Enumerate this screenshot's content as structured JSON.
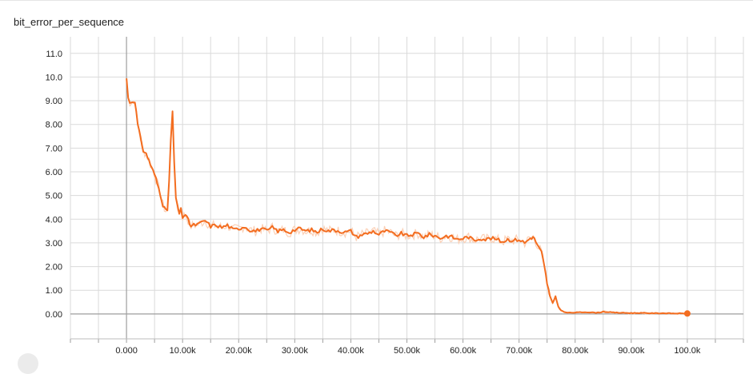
{
  "chart_data": {
    "type": "line",
    "title": "bit_error_per_sequence",
    "xlabel": "",
    "ylabel": "",
    "xlim": [
      -10000,
      110000
    ],
    "ylim": [
      -1.05,
      11.7
    ],
    "grid": true,
    "x_ticks": [
      0,
      10000,
      20000,
      30000,
      40000,
      50000,
      60000,
      70000,
      80000,
      90000,
      100000
    ],
    "x_tick_labels": [
      "0.000",
      "10.00k",
      "20.00k",
      "30.00k",
      "40.00k",
      "50.00k",
      "60.00k",
      "70.00k",
      "80.00k",
      "90.00k",
      "100.0k"
    ],
    "y_ticks": [
      0,
      1,
      2,
      3,
      4,
      5,
      6,
      7,
      8,
      9,
      10,
      11
    ],
    "y_tick_labels": [
      "0.00",
      "1.00",
      "2.00",
      "3.00",
      "4.00",
      "5.00",
      "6.00",
      "7.00",
      "8.00",
      "9.00",
      "10.0",
      "11.0"
    ],
    "series": [
      {
        "color": "#f36d20",
        "raw_color": "#fbd0b6",
        "x": [
          0,
          300,
          600,
          1000,
          1500,
          2000,
          2500,
          3000,
          3500,
          4000,
          4500,
          5000,
          5500,
          6000,
          6500,
          7000,
          7300,
          7600,
          7900,
          8200,
          8500,
          8800,
          9100,
          9400,
          9700,
          10000,
          10500,
          11000,
          11500,
          12000,
          13000,
          14000,
          15000,
          16000,
          17000,
          18000,
          19000,
          20000,
          21000,
          22000,
          23000,
          24000,
          25000,
          26000,
          27000,
          28000,
          29000,
          30000,
          31000,
          32000,
          33000,
          34000,
          35000,
          36000,
          37000,
          38000,
          39000,
          40000,
          41000,
          42000,
          43000,
          44000,
          45000,
          46000,
          47000,
          48000,
          49000,
          50000,
          51000,
          52000,
          53000,
          54000,
          55000,
          56000,
          57000,
          58000,
          59000,
          60000,
          61000,
          62000,
          63000,
          64000,
          65000,
          66000,
          67000,
          68000,
          69000,
          70000,
          71000,
          72000,
          72500,
          73000,
          73500,
          74000,
          74500,
          75000,
          75500,
          76000,
          76500,
          77000,
          77500,
          78000,
          79000,
          80000,
          82000,
          84000,
          85000,
          86000,
          88000,
          90000,
          92000,
          94000,
          96000,
          98000,
          100000
        ],
        "values": [
          9.95,
          9.1,
          8.95,
          8.95,
          9.0,
          8.0,
          7.4,
          6.9,
          6.75,
          6.5,
          6.15,
          5.9,
          5.5,
          5.1,
          4.6,
          4.35,
          4.4,
          5.6,
          7.3,
          8.5,
          6.4,
          4.9,
          4.5,
          4.25,
          4.4,
          4.1,
          4.2,
          3.95,
          3.7,
          3.75,
          3.8,
          3.95,
          3.7,
          3.75,
          3.65,
          3.75,
          3.55,
          3.6,
          3.7,
          3.55,
          3.5,
          3.6,
          3.5,
          3.65,
          3.5,
          3.55,
          3.45,
          3.55,
          3.6,
          3.5,
          3.55,
          3.45,
          3.6,
          3.5,
          3.55,
          3.5,
          3.45,
          3.5,
          3.25,
          3.35,
          3.4,
          3.5,
          3.35,
          3.5,
          3.45,
          3.3,
          3.4,
          3.3,
          3.35,
          3.4,
          3.25,
          3.35,
          3.3,
          3.2,
          3.3,
          3.25,
          3.15,
          3.2,
          3.25,
          3.1,
          3.2,
          3.15,
          3.2,
          3.15,
          3.05,
          3.15,
          3.1,
          3.15,
          3.0,
          3.2,
          3.25,
          3.05,
          2.8,
          2.6,
          2.0,
          1.3,
          0.75,
          0.45,
          0.75,
          0.3,
          0.15,
          0.08,
          0.05,
          0.06,
          0.08,
          0.05,
          0.1,
          0.07,
          0.05,
          0.04,
          0.04,
          0.03,
          0.03,
          0.02,
          0.02
        ]
      }
    ]
  }
}
